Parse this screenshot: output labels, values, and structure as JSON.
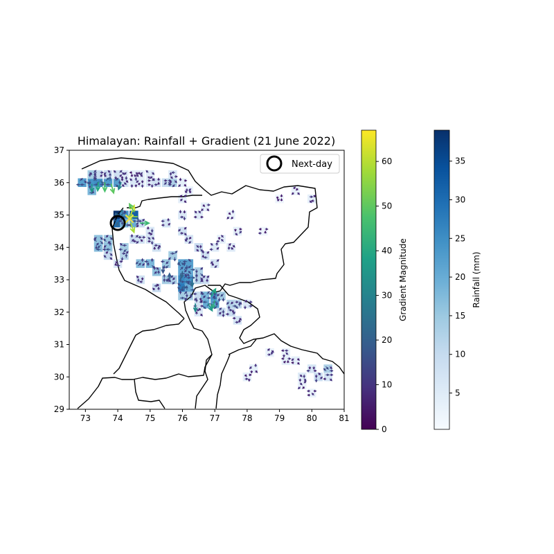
{
  "chart_data": {
    "type": "heatmap",
    "title": "Himalayan: Rainfall + Gradient (21 June 2022)",
    "xlabel": "",
    "ylabel": "",
    "xlim": [
      72.5,
      81
    ],
    "ylim": [
      29,
      37
    ],
    "x_ticks": [
      "73",
      "74",
      "75",
      "76",
      "77",
      "78",
      "79",
      "80",
      "81"
    ],
    "y_ticks": [
      "29",
      "30",
      "31",
      "32",
      "33",
      "34",
      "35",
      "36",
      "37"
    ],
    "legend": {
      "position": "top-right",
      "entries": [
        {
          "label": "Next-day",
          "marker": "open-circle"
        }
      ]
    },
    "next_day_marker": {
      "lon": 74.0,
      "lat": 34.75
    },
    "gradient_max_marker": {
      "lon": 74.4,
      "lat": 34.9
    },
    "rainfall_colorbar": {
      "label": "Rainfall (mm)",
      "min": 0.3,
      "max": 39,
      "ticks": [
        "5",
        "10",
        "15",
        "20",
        "25",
        "30",
        "35"
      ],
      "colormap": [
        "#f7fbff",
        "#deebf7",
        "#c6dbef",
        "#9ecae1",
        "#6baed6",
        "#4292c6",
        "#2171b5",
        "#08519c",
        "#08306b"
      ]
    },
    "gradient_colorbar": {
      "label": "Gradient Magnitude",
      "min": 0,
      "max": 67,
      "ticks": [
        "0",
        "10",
        "20",
        "30",
        "40",
        "50",
        "60"
      ],
      "colormap": [
        "#440154",
        "#46327e",
        "#365c8d",
        "#277f8e",
        "#1fa187",
        "#4ac16d",
        "#a0da39",
        "#fde725"
      ]
    },
    "rainfall_cells": [
      [
        72.9,
        36.0,
        22
      ],
      [
        73.2,
        36.0,
        24
      ],
      [
        73.4,
        36.0,
        25
      ],
      [
        73.7,
        36.0,
        23
      ],
      [
        74.0,
        36.0,
        22
      ],
      [
        73.2,
        36.25,
        14
      ],
      [
        73.4,
        36.25,
        10
      ],
      [
        73.7,
        36.25,
        9
      ],
      [
        74.0,
        36.25,
        8
      ],
      [
        74.2,
        36.25,
        5
      ],
      [
        73.2,
        35.75,
        18
      ],
      [
        74.2,
        36.0,
        8
      ],
      [
        74.5,
        36.0,
        6
      ],
      [
        74.7,
        36.0,
        5
      ],
      [
        75.0,
        36.0,
        6
      ],
      [
        75.2,
        36.0,
        8
      ],
      [
        75.5,
        36.0,
        10
      ],
      [
        75.7,
        36.0,
        13
      ],
      [
        76.0,
        36.0,
        4
      ],
      [
        74.5,
        36.25,
        4
      ],
      [
        74.7,
        36.25,
        4
      ],
      [
        75.0,
        36.25,
        5
      ],
      [
        75.7,
        36.25,
        6
      ],
      [
        76.2,
        35.75,
        3
      ],
      [
        74.0,
        35.0,
        39
      ],
      [
        74.2,
        35.0,
        24
      ],
      [
        74.5,
        35.0,
        32
      ],
      [
        74.0,
        34.75,
        30
      ],
      [
        74.2,
        34.75,
        18
      ],
      [
        74.5,
        34.75,
        20
      ],
      [
        74.7,
        34.75,
        9
      ],
      [
        73.4,
        34.25,
        16
      ],
      [
        73.7,
        34.25,
        15
      ],
      [
        73.4,
        34.0,
        17
      ],
      [
        73.7,
        34.0,
        16
      ],
      [
        74.2,
        34.0,
        14
      ],
      [
        73.7,
        33.75,
        10
      ],
      [
        74.2,
        33.75,
        12
      ],
      [
        74.0,
        33.5,
        6
      ],
      [
        74.5,
        34.25,
        9
      ],
      [
        74.7,
        34.25,
        8
      ],
      [
        75.0,
        34.5,
        6
      ],
      [
        75.0,
        34.25,
        7
      ],
      [
        75.2,
        34.0,
        8
      ],
      [
        74.7,
        33.5,
        17
      ],
      [
        75.0,
        33.5,
        18
      ],
      [
        75.2,
        33.25,
        16
      ],
      [
        75.5,
        33.5,
        15
      ],
      [
        75.5,
        33.0,
        14
      ],
      [
        75.7,
        33.0,
        13
      ],
      [
        75.2,
        32.75,
        9
      ],
      [
        74.7,
        33.0,
        8
      ],
      [
        75.7,
        33.75,
        14
      ],
      [
        76.0,
        33.5,
        22
      ],
      [
        76.2,
        33.5,
        22
      ],
      [
        76.0,
        33.25,
        21
      ],
      [
        76.2,
        33.25,
        20
      ],
      [
        76.0,
        33.0,
        26
      ],
      [
        76.2,
        33.0,
        24
      ],
      [
        76.0,
        32.75,
        28
      ],
      [
        76.2,
        32.75,
        20
      ],
      [
        76.5,
        33.25,
        13
      ],
      [
        76.5,
        33.0,
        12
      ],
      [
        76.0,
        32.5,
        14
      ],
      [
        76.2,
        32.5,
        13
      ],
      [
        76.5,
        32.5,
        10
      ],
      [
        76.7,
        33.0,
        9
      ],
      [
        76.7,
        32.5,
        18
      ],
      [
        77.0,
        32.5,
        24
      ],
      [
        76.7,
        32.25,
        20
      ],
      [
        77.0,
        32.25,
        22
      ],
      [
        77.2,
        32.5,
        14
      ],
      [
        77.5,
        32.25,
        12
      ],
      [
        77.7,
        32.25,
        11
      ],
      [
        77.2,
        32.0,
        10
      ],
      [
        77.5,
        32.0,
        9
      ],
      [
        77.7,
        31.75,
        7
      ],
      [
        76.5,
        32.25,
        8
      ],
      [
        76.5,
        32.0,
        6
      ],
      [
        78.0,
        32.25,
        6
      ],
      [
        76.0,
        34.5,
        8
      ],
      [
        76.2,
        34.25,
        7
      ],
      [
        76.5,
        34.0,
        9
      ],
      [
        76.7,
        33.75,
        8
      ],
      [
        77.0,
        33.5,
        7
      ],
      [
        77.0,
        34.0,
        5
      ],
      [
        77.2,
        34.25,
        4
      ],
      [
        77.5,
        34.0,
        5
      ],
      [
        77.7,
        34.5,
        4
      ],
      [
        76.0,
        35.0,
        6
      ],
      [
        76.5,
        35.0,
        5
      ],
      [
        75.5,
        34.75,
        7
      ],
      [
        76.0,
        35.5,
        4
      ],
      [
        76.7,
        35.25,
        4
      ],
      [
        77.5,
        35.0,
        3
      ],
      [
        79.0,
        35.5,
        2
      ],
      [
        80.0,
        35.5,
        4
      ],
      [
        79.5,
        35.75,
        3
      ],
      [
        78.5,
        34.5,
        2
      ],
      [
        80.5,
        30.25,
        13
      ],
      [
        80.2,
        30.0,
        9
      ],
      [
        80.0,
        30.25,
        7
      ],
      [
        79.7,
        30.0,
        5
      ],
      [
        80.5,
        30.0,
        7
      ],
      [
        79.5,
        30.5,
        4
      ],
      [
        79.2,
        30.5,
        4
      ],
      [
        78.7,
        30.75,
        3
      ],
      [
        79.2,
        30.75,
        3
      ],
      [
        78.0,
        30.0,
        4
      ],
      [
        78.2,
        30.25,
        4
      ],
      [
        79.7,
        29.75,
        3
      ],
      [
        80.0,
        29.5,
        3
      ]
    ],
    "gradient_vectors": [
      [
        73.6,
        36.0,
        48,
        270
      ],
      [
        73.8,
        35.95,
        50,
        285
      ],
      [
        73.4,
        36.0,
        40,
        265
      ],
      [
        74.1,
        36.0,
        30,
        250
      ],
      [
        73.2,
        35.95,
        35,
        270
      ],
      [
        74.4,
        35.0,
        62,
        70
      ],
      [
        74.6,
        34.95,
        55,
        180
      ],
      [
        74.4,
        34.75,
        58,
        290
      ],
      [
        74.7,
        34.75,
        45,
        0
      ],
      [
        74.5,
        35.1,
        50,
        120
      ],
      [
        76.9,
        32.5,
        40,
        60
      ],
      [
        77.0,
        32.35,
        42,
        250
      ],
      [
        76.8,
        32.25,
        36,
        300
      ],
      [
        76.4,
        32.25,
        32,
        270
      ],
      [
        76.3,
        33.0,
        25,
        270
      ],
      [
        76.0,
        33.25,
        22,
        260
      ],
      [
        75.6,
        33.0,
        20,
        90
      ],
      [
        75.4,
        33.4,
        18,
        270
      ]
    ]
  }
}
